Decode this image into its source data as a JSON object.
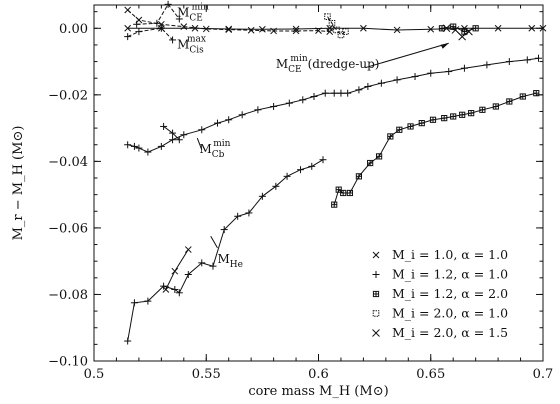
{
  "chart_data": {
    "type": "line",
    "xlabel": "core mass  M_H  (M⊙)",
    "ylabel": "M_r − M_H  (M⊙)",
    "xlim": [
      0.5,
      0.7
    ],
    "ylim": [
      -0.1,
      0.007
    ],
    "x_ticks": [
      0.5,
      0.55,
      0.6,
      0.65,
      0.7
    ],
    "x_tick_labels": [
      "0.5",
      "0.55",
      "0.6",
      "0.65",
      "0.7"
    ],
    "y_ticks": [
      0.0,
      -0.02,
      -0.04,
      -0.06,
      -0.08,
      -0.1
    ],
    "y_tick_labels": [
      "0.00",
      "−0.02",
      "−0.04",
      "−0.06",
      "−0.08",
      "−0.10"
    ],
    "grid": false,
    "legend_position": "bottom-right",
    "legend": [
      {
        "marker": "×",
        "text": "M_i = 1.0,  α = 1.0"
      },
      {
        "marker": "+",
        "text": "M_i = 1.2,  α = 1.0"
      },
      {
        "marker": "⊞",
        "text": "M_i = 1.2,  α = 2.0"
      },
      {
        "marker": "⌑",
        "text": "M_i = 2.0,  α = 1.0"
      },
      {
        "marker": "✕",
        "text": "M_i = 2.0,  α = 1.5"
      }
    ],
    "annotations": [
      {
        "text": "M_CE^min",
        "main": "M",
        "sub": "CE",
        "sup": "min",
        "at": [
          0.537,
          0.0035
        ]
      },
      {
        "text": "M_Cis^max",
        "main": "M",
        "sub": "Cis",
        "sup": "max",
        "at": [
          0.537,
          -0.006
        ]
      },
      {
        "text": "M_CE^min(dredge-up)",
        "main": "M",
        "sub": "CE",
        "sup": "min",
        "suffix": "(dredge-up)",
        "at": [
          0.581,
          -0.012
        ]
      },
      {
        "text": "M_Cb^min",
        "main": "M",
        "sub": "Cb",
        "sup": "min",
        "at": [
          0.547,
          -0.0375
        ]
      },
      {
        "text": "M_He",
        "main": "M",
        "sub": "He",
        "sup": "",
        "at": [
          0.555,
          -0.0705
        ]
      }
    ],
    "series": [
      {
        "marker": "+",
        "style": "solid",
        "x": [
          0.515,
          0.518,
          0.52,
          0.524,
          0.53,
          0.535,
          0.54,
          0.548,
          0.555,
          0.56,
          0.566,
          0.573,
          0.58,
          0.587,
          0.593,
          0.598,
          0.603,
          0.607,
          0.61,
          0.613,
          0.618,
          0.622,
          0.628,
          0.635,
          0.643,
          0.65,
          0.658,
          0.665,
          0.675,
          0.685,
          0.693,
          0.698
        ],
        "y": [
          -0.035,
          -0.0355,
          -0.036,
          -0.0372,
          -0.0355,
          -0.0335,
          -0.032,
          -0.0305,
          -0.0285,
          -0.0275,
          -0.026,
          -0.0245,
          -0.0235,
          -0.0225,
          -0.0215,
          -0.0205,
          -0.0195,
          -0.0195,
          -0.0195,
          -0.0195,
          -0.0185,
          -0.0175,
          -0.0165,
          -0.0155,
          -0.0145,
          -0.0135,
          -0.013,
          -0.012,
          -0.011,
          -0.01,
          -0.0095,
          -0.009
        ]
      },
      {
        "marker": "+",
        "style": "solid",
        "x": [
          0.531,
          0.535,
          0.538
        ],
        "y": [
          -0.0295,
          -0.0315,
          -0.0335
        ]
      },
      {
        "marker": "+",
        "style": "solid",
        "x": [
          0.515,
          0.518,
          0.524,
          0.531,
          0.536,
          0.538,
          0.542,
          0.548,
          0.553,
          0.558,
          0.564,
          0.569,
          0.575,
          0.581,
          0.586,
          0.592,
          0.597,
          0.602
        ],
        "y": [
          -0.094,
          -0.0825,
          -0.082,
          -0.0775,
          -0.0785,
          -0.0795,
          -0.074,
          -0.0705,
          -0.0715,
          -0.0605,
          -0.0565,
          -0.0555,
          -0.0505,
          -0.0475,
          -0.0445,
          -0.0425,
          -0.0415,
          -0.0395
        ]
      },
      {
        "marker": "×",
        "style": "solid",
        "x": [
          0.532,
          0.536,
          0.542
        ],
        "y": [
          -0.0785,
          -0.073,
          -0.0665
        ]
      },
      {
        "marker": "⊞",
        "style": "solid",
        "x": [
          0.607,
          0.609,
          0.611,
          0.614,
          0.618,
          0.623,
          0.627,
          0.632,
          0.636,
          0.641,
          0.646,
          0.651,
          0.656,
          0.66,
          0.664,
          0.668,
          0.673,
          0.679,
          0.685,
          0.691,
          0.697
        ],
        "y": [
          -0.053,
          -0.0485,
          -0.0495,
          -0.0495,
          -0.0445,
          -0.0405,
          -0.0385,
          -0.0325,
          -0.0305,
          -0.0295,
          -0.0285,
          -0.0275,
          -0.027,
          -0.0265,
          -0.026,
          -0.0255,
          -0.0245,
          -0.0235,
          -0.022,
          -0.0205,
          -0.0195
        ]
      },
      {
        "marker": "×",
        "style": "solid",
        "x": [
          0.515,
          0.53,
          0.545,
          0.56,
          0.575,
          0.59,
          0.605,
          0.62,
          0.635,
          0.65,
          0.665,
          0.68,
          0.695,
          0.7
        ],
        "y": [
          0,
          0,
          0,
          -0.0002,
          -0.0003,
          -0.0002,
          0,
          0,
          -0.0005,
          -0.0003,
          0,
          0,
          0,
          0
        ]
      },
      {
        "marker": "×",
        "style": "dashed",
        "x": [
          0.515,
          0.52,
          0.53,
          0.54,
          0.55,
          0.56,
          0.57,
          0.58,
          0.59,
          0.6,
          0.605
        ],
        "y": [
          0.0055,
          0.0025,
          0.0012,
          0.0005,
          -0.0002,
          -0.0004,
          -0.0006,
          -0.0008,
          -0.0008,
          -0.0007,
          -0.001
        ]
      },
      {
        "marker": "+",
        "style": "dashed",
        "x": [
          0.519,
          0.528,
          0.533,
          0.538
        ],
        "y": [
          0.0012,
          0.0015,
          0.0072,
          0.0028
        ]
      },
      {
        "marker": "+",
        "style": "dashed",
        "x": [
          0.515,
          0.52,
          0.53,
          0.535
        ],
        "y": [
          -0.0025,
          -0.001,
          0.0,
          -0.0035
        ]
      },
      {
        "marker": "⌑",
        "style": "dashed",
        "x": [
          0.604,
          0.606,
          0.608,
          0.61,
          0.612
        ],
        "y": [
          0.0035,
          0.0015,
          -0.0005,
          -0.002,
          -0.001
        ]
      },
      {
        "marker": "⊞",
        "style": "solid",
        "x": [
          0.655,
          0.66,
          0.665,
          0.67
        ],
        "y": [
          0.0,
          0.0005,
          -0.001,
          0.0
        ]
      },
      {
        "marker": "✕",
        "style": "solid",
        "x": [
          0.657,
          0.661,
          0.664,
          0.667
        ],
        "y": [
          0.0,
          -0.0005,
          -0.0025,
          -0.001
        ]
      }
    ]
  }
}
